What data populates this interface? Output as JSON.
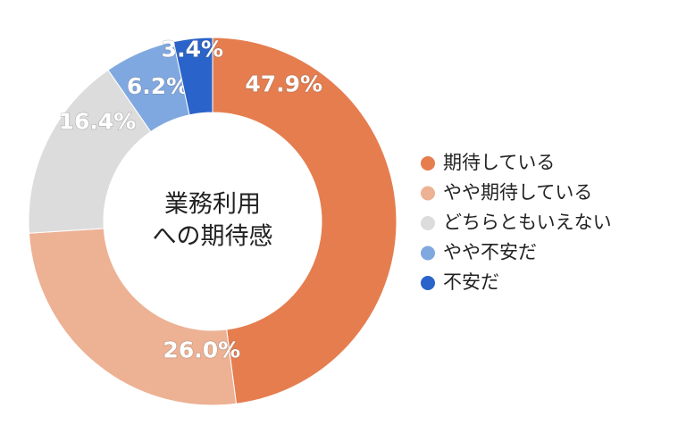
{
  "chart_data": {
    "type": "donut",
    "center_text": [
      "業務利用",
      "への期待感"
    ],
    "categories": [
      "期待している",
      "やや期待している",
      "どちらともいえない",
      "やや不安だ",
      "不安だ"
    ],
    "values": [
      47.9,
      26.0,
      16.4,
      6.2,
      3.4
    ],
    "value_labels": [
      "47.9%",
      "26.0%",
      "16.4%",
      "6.2%",
      "3.4%"
    ],
    "colors": [
      "#e57d4f",
      "#edb194",
      "#dcdcdc",
      "#80a8e0",
      "#2a63c9"
    ],
    "legend": "right"
  }
}
